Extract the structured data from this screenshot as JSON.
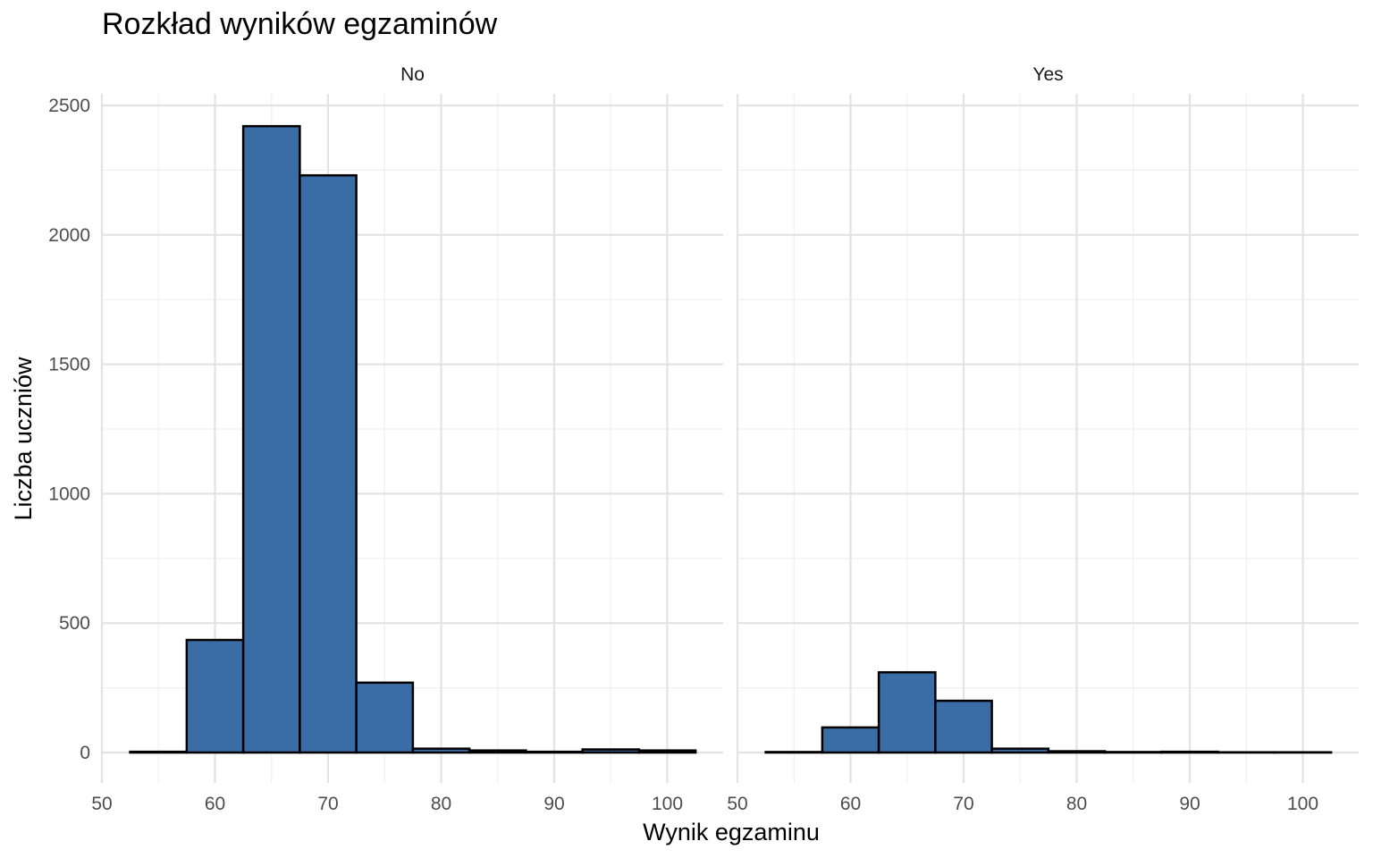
{
  "chart_data": {
    "type": "bar",
    "title": "Rozkład wyników egzaminów",
    "xlabel": "Wynik egzaminu",
    "ylabel": "Liczba uczniów",
    "bar_color": "#3A6CA6",
    "bar_outline": "#000000",
    "bin_width": 5,
    "bin_centers": [
      55,
      60,
      65,
      70,
      75,
      80,
      85,
      90,
      95,
      100
    ],
    "xlim": [
      50,
      102.5
    ],
    "ylim": [
      0,
      2500
    ],
    "x_ticks": [
      "50",
      "60",
      "70",
      "80",
      "90",
      "100"
    ],
    "y_ticks": [
      "0",
      "500",
      "1000",
      "1500",
      "2000",
      "2500"
    ],
    "grid": true,
    "legend": "none",
    "facets": [
      {
        "name": "No",
        "values": [
          3,
          435,
          2420,
          2230,
          270,
          15,
          8,
          3,
          12,
          8
        ]
      },
      {
        "name": "Yes",
        "values": [
          2,
          97,
          310,
          200,
          15,
          5,
          2,
          3,
          1,
          1
        ]
      }
    ]
  }
}
